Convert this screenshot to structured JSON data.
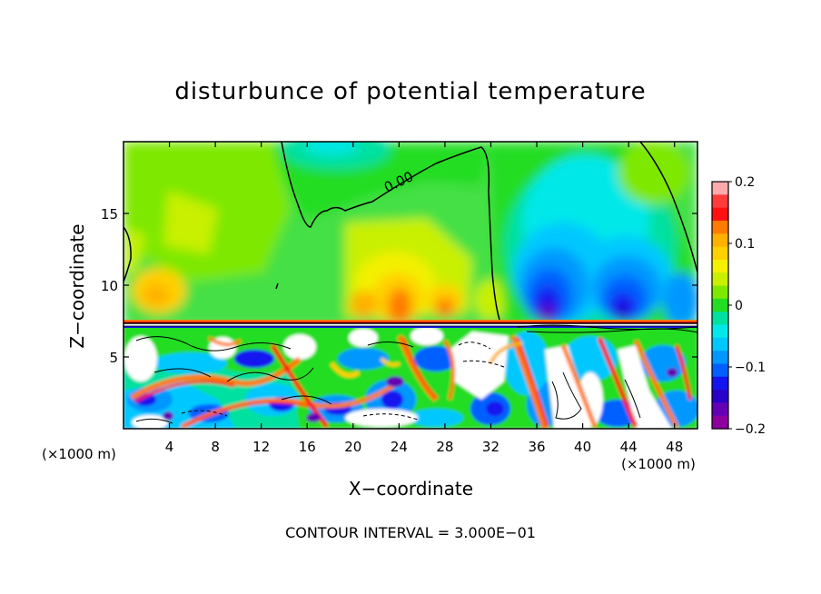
{
  "chart_data": {
    "type": "heatmap",
    "title": "disturbunce of potential temperature",
    "xlabel": "X−coordinate",
    "ylabel": "Z−coordinate",
    "x_unit": "(×1000 m)",
    "xlim": [
      0,
      50
    ],
    "ylim": [
      0,
      20
    ],
    "x_ticks": [
      4,
      8,
      12,
      16,
      20,
      24,
      28,
      32,
      36,
      40,
      44,
      48
    ],
    "y_ticks": [
      5,
      10,
      15
    ],
    "colorbar": {
      "range": [
        -0.2,
        0.2
      ],
      "tick_values": [
        0.2,
        0.1,
        0,
        -0.1,
        -0.2
      ],
      "tick_labels": [
        "0.2",
        "0.1",
        "0",
        "−0.1",
        "−0.2"
      ],
      "colors": [
        "#ffaaaa",
        "#ff3b3b",
        "#ff1111",
        "#ff7a00",
        "#ffb000",
        "#ffd000",
        "#f3f000",
        "#c8f000",
        "#7ee800",
        "#22dd22",
        "#00e0a0",
        "#00e8e8",
        "#00c8ff",
        "#0098ff",
        "#0060ff",
        "#1414f0",
        "#2800c8",
        "#6400b4",
        "#8c00a0"
      ]
    },
    "contour_labels": [
      "0.00"
    ],
    "contour_interval": "CONTOUR INTERVAL = 3.000E−01"
  }
}
